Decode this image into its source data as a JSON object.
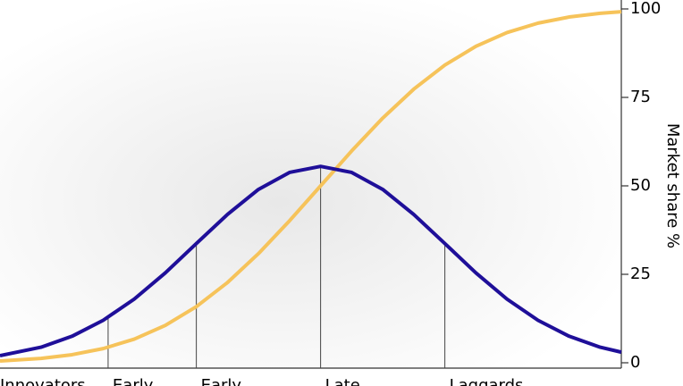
{
  "chart_data": {
    "type": "line",
    "x": [
      -2.58,
      -2.25,
      -2,
      -1.75,
      -1.5,
      -1.25,
      -1,
      -0.75,
      -0.5,
      -0.25,
      0,
      0.25,
      0.5,
      0.75,
      1,
      1.25,
      1.5,
      1.75,
      2,
      2.25,
      2.42
    ],
    "series": [
      {
        "color": "#1f0f99",
        "values": [
          2.0,
          4.4,
          7.5,
          12.0,
          18.0,
          25.4,
          33.7,
          41.9,
          49.0,
          53.8,
          55.5,
          53.8,
          49.0,
          41.9,
          33.7,
          25.4,
          18.0,
          12.0,
          7.5,
          4.4,
          3.0
        ]
      },
      {
        "color": "#f6c35a",
        "values": [
          0.49,
          1.22,
          2.28,
          4.01,
          6.68,
          10.56,
          15.87,
          22.66,
          30.85,
          40.13,
          50,
          59.87,
          69.15,
          77.34,
          84.13,
          89.44,
          93.32,
          95.99,
          97.72,
          98.78,
          99.22
        ]
      }
    ],
    "categories": [
      "Innovators",
      "Early",
      "Early",
      "Late",
      "Laggards"
    ],
    "boundaries": [
      -1.71,
      -1,
      0,
      1
    ],
    "xlim": [
      -2.58,
      2.42
    ],
    "ylim": [
      0,
      100
    ],
    "yticks": [
      0,
      25,
      50,
      75,
      100
    ],
    "y_label": "Market share %",
    "axis_side": "right"
  }
}
